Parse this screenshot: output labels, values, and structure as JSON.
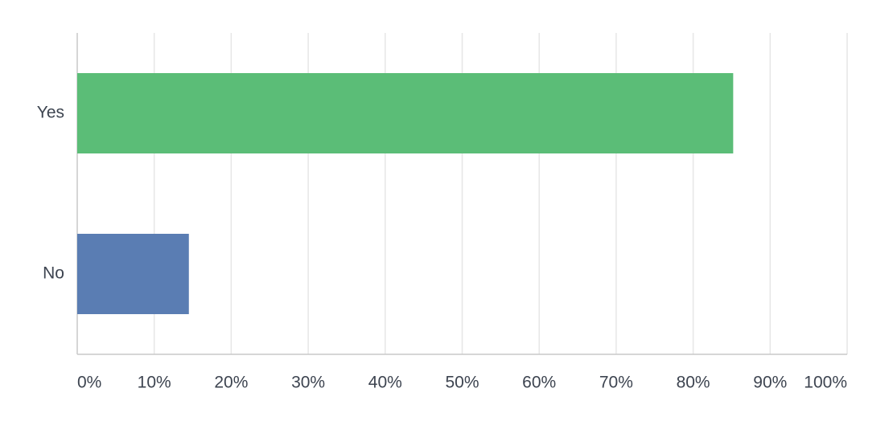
{
  "chart_data": {
    "type": "hbar",
    "categories": [
      "Yes",
      "No"
    ],
    "values": [
      85.2,
      14.5
    ],
    "colors": [
      "#5bbd77",
      "#5a7db3"
    ],
    "xlim": [
      0,
      100
    ],
    "xticks": [
      {
        "value": 0,
        "label": "0%"
      },
      {
        "value": 10,
        "label": "10%"
      },
      {
        "value": 20,
        "label": "20%"
      },
      {
        "value": 30,
        "label": "30%"
      },
      {
        "value": 40,
        "label": "40%"
      },
      {
        "value": 50,
        "label": "50%"
      },
      {
        "value": 60,
        "label": "60%"
      },
      {
        "value": 70,
        "label": "70%"
      },
      {
        "value": 80,
        "label": "80%"
      },
      {
        "value": 90,
        "label": "90%"
      },
      {
        "value": 100,
        "label": "100%"
      }
    ],
    "grid": true
  }
}
